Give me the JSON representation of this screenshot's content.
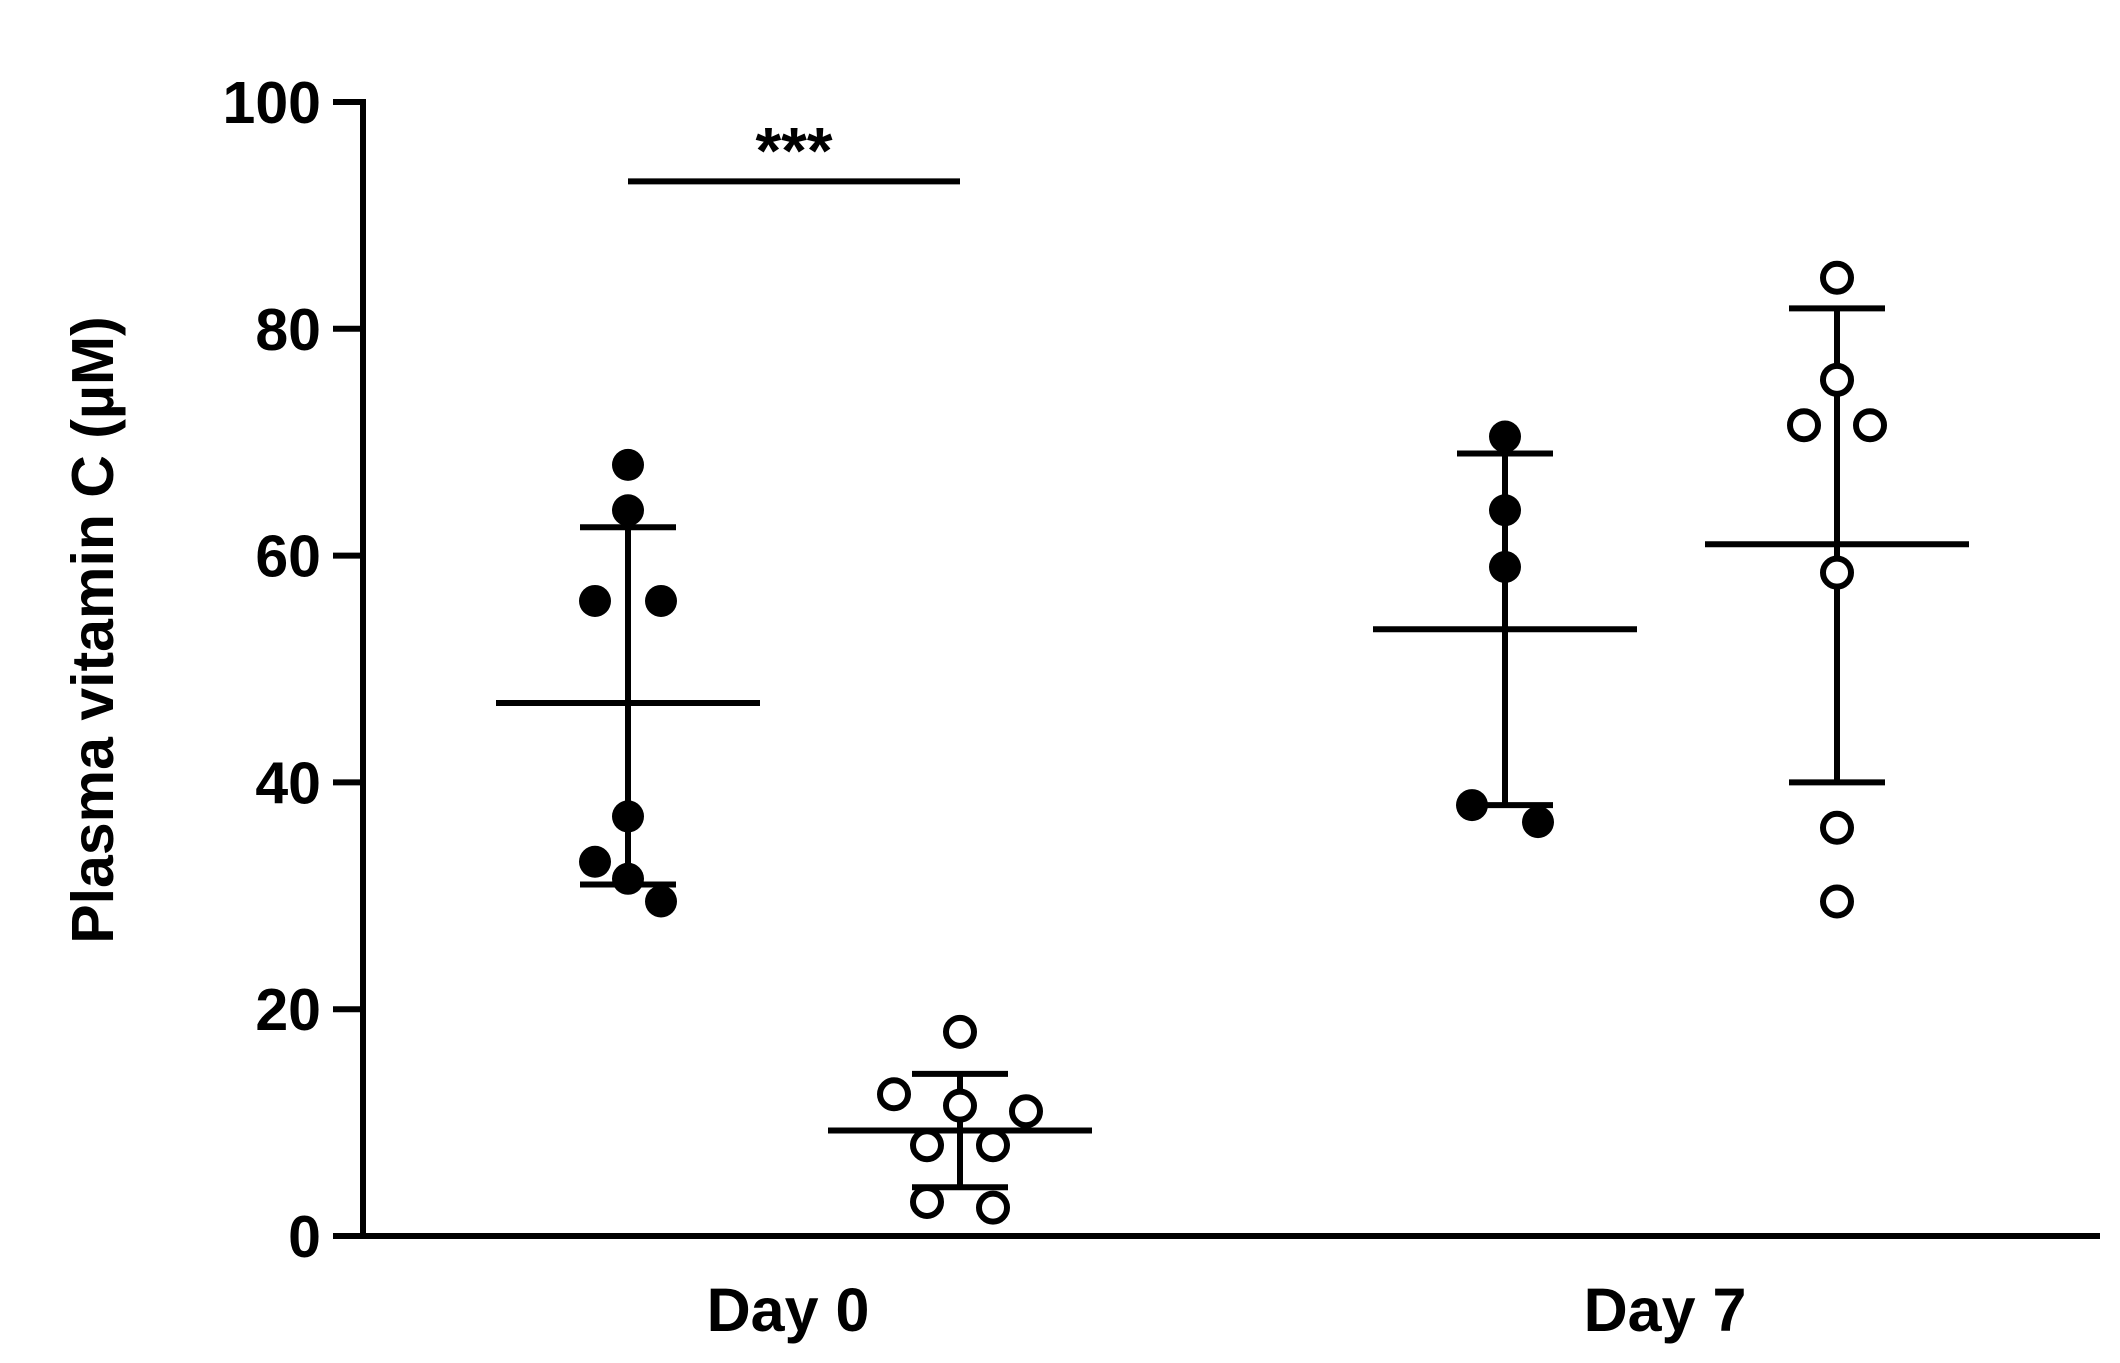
{
  "chart_data": {
    "type": "scatter",
    "subtype": "dot-plot-with-mean-and-sd",
    "title": "",
    "xlabel": "",
    "ylabel": "Plasma vitamin C (µM)",
    "ylim": [
      0,
      100
    ],
    "y_ticks": [
      0,
      20,
      40,
      60,
      80,
      100
    ],
    "categories": [
      "Day 0",
      "Day 7"
    ],
    "grid": false,
    "legend": "none",
    "series": [
      {
        "marker": "filled-circle",
        "color": "#000000",
        "groups": [
          {
            "category": "Day 0",
            "values": [
              68,
              64,
              56,
              56,
              37,
              33,
              31.5,
              29.5
            ],
            "mean": 47,
            "sd_low": 31,
            "sd_high": 62.5
          },
          {
            "category": "Day 7",
            "values": [
              70.5,
              64,
              59,
              38,
              36.5
            ],
            "mean": 53.5,
            "sd_low": 38,
            "sd_high": 69
          }
        ]
      },
      {
        "marker": "open-circle",
        "color": "#000000",
        "groups": [
          {
            "category": "Day 0",
            "values": [
              18,
              12.5,
              11.5,
              11,
              8,
              8,
              3,
              2.5
            ],
            "mean": 9.3,
            "sd_low": 4.3,
            "sd_high": 14.3
          },
          {
            "category": "Day 7",
            "values": [
              84.5,
              75.5,
              71.5,
              71.5,
              58.5,
              36,
              29.5
            ],
            "mean": 61,
            "sd_low": 40,
            "sd_high": 81.8
          }
        ]
      }
    ],
    "annotations": [
      {
        "text": "***",
        "type": "significance-bracket",
        "category": "Day 0",
        "y": 93
      }
    ]
  }
}
